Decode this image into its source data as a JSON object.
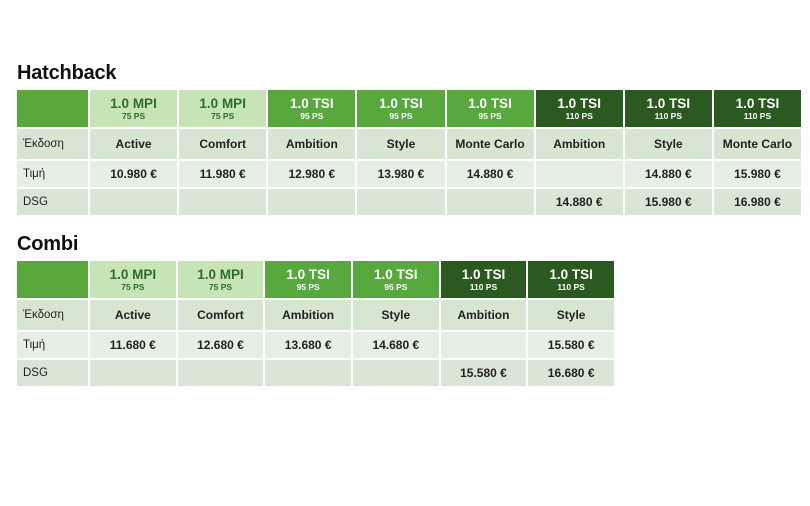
{
  "hatchback": {
    "title": "Hatchback",
    "engines": [
      {
        "name": "1.0 MPI",
        "ps": "75 PS",
        "tier": "mpi"
      },
      {
        "name": "1.0 MPI",
        "ps": "75 PS",
        "tier": "mpi"
      },
      {
        "name": "1.0 TSI",
        "ps": "95 PS",
        "tier": "tsi95"
      },
      {
        "name": "1.0 TSI",
        "ps": "95 PS",
        "tier": "tsi95"
      },
      {
        "name": "1.0 TSI",
        "ps": "95 PS",
        "tier": "tsi95"
      },
      {
        "name": "1.0 TSI",
        "ps": "110 PS",
        "tier": "tsi110"
      },
      {
        "name": "1.0 TSI",
        "ps": "110 PS",
        "tier": "tsi110"
      },
      {
        "name": "1.0 TSI",
        "ps": "110 PS",
        "tier": "tsi110"
      }
    ],
    "rows": [
      {
        "label": "Έκδοση",
        "kind": "trim",
        "cells": [
          "Active",
          "Comfort",
          "Ambition",
          "Style",
          "Monte Carlo",
          "Ambition",
          "Style",
          "Monte Carlo"
        ]
      },
      {
        "label": "Τιμή",
        "kind": "price",
        "cells": [
          "10.980 €",
          "11.980 €",
          "12.980 €",
          "13.980 €",
          "14.880 €",
          "",
          "14.880 €",
          "15.980 €"
        ]
      },
      {
        "label": "DSG",
        "kind": "dsg",
        "cells": [
          "",
          "",
          "",
          "",
          "",
          "14.880 €",
          "15.980 €",
          "16.980 €"
        ]
      }
    ]
  },
  "combi": {
    "title": "Combi",
    "engines": [
      {
        "name": "1.0 MPI",
        "ps": "75 PS",
        "tier": "mpi"
      },
      {
        "name": "1.0 MPI",
        "ps": "75 PS",
        "tier": "mpi"
      },
      {
        "name": "1.0 TSI",
        "ps": "95 PS",
        "tier": "tsi95"
      },
      {
        "name": "1.0 TSI",
        "ps": "95 PS",
        "tier": "tsi95"
      },
      {
        "name": "1.0 TSI",
        "ps": "110 PS",
        "tier": "tsi110"
      },
      {
        "name": "1.0 TSI",
        "ps": "110 PS",
        "tier": "tsi110"
      }
    ],
    "rows": [
      {
        "label": "Έκδοση",
        "kind": "trim",
        "cells": [
          "Active",
          "Comfort",
          "Ambition",
          "Style",
          "Ambition",
          "Style"
        ]
      },
      {
        "label": "Τιμή",
        "kind": "price",
        "cells": [
          "11.680 €",
          "12.680 €",
          "13.680 €",
          "14.680 €",
          "",
          "15.580 €"
        ]
      },
      {
        "label": "DSG",
        "kind": "dsg",
        "cells": [
          "",
          "",
          "",
          "",
          "15.580 €",
          "16.680 €"
        ]
      }
    ]
  },
  "colors": {
    "mpi": "#c6e4b5",
    "tsi95": "#57a83d",
    "tsi110": "#2a5a1f",
    "corner": "#5aa83b"
  }
}
